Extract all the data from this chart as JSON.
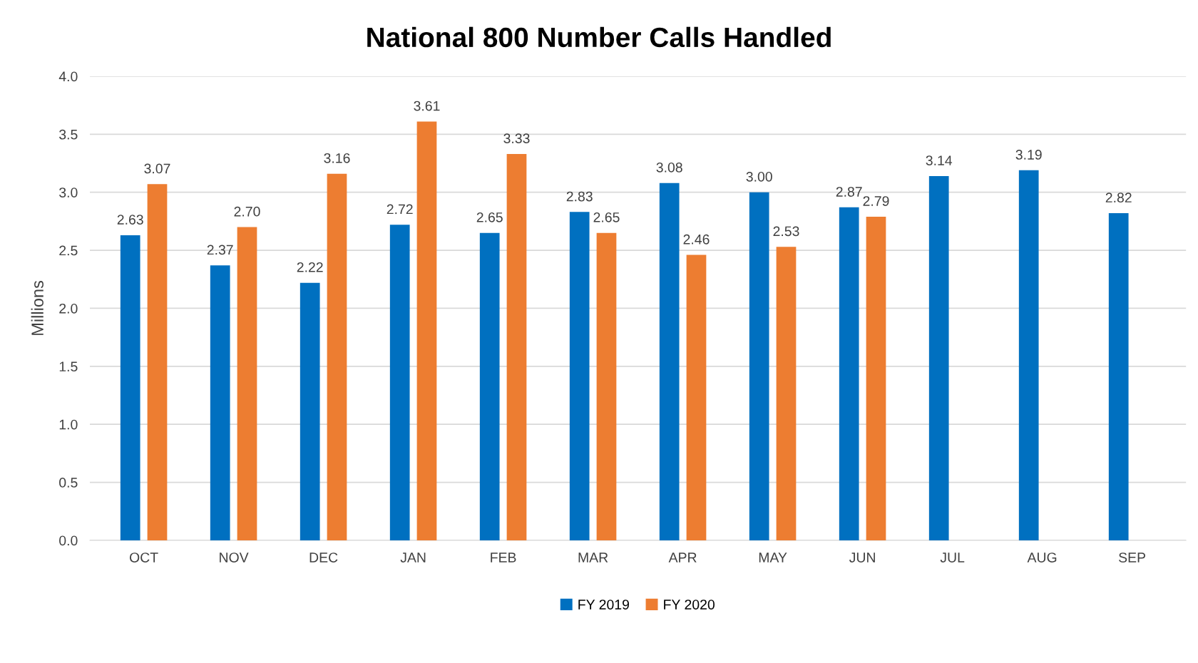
{
  "chart_data": {
    "type": "bar",
    "title": "National 800 Number Calls Handled",
    "ylabel": "Millions",
    "categories": [
      "OCT",
      "NOV",
      "DEC",
      "JAN",
      "FEB",
      "MAR",
      "APR",
      "MAY",
      "JUN",
      "JUL",
      "AUG",
      "SEP"
    ],
    "series": [
      {
        "name": "FY 2019",
        "color": "#0070c0",
        "values": [
          2.63,
          2.37,
          2.22,
          2.72,
          2.65,
          2.83,
          3.08,
          3.0,
          2.87,
          3.14,
          3.19,
          2.82
        ],
        "value_labels": [
          "2.63",
          "2.37",
          "2.22",
          "2.72",
          "2.65",
          "2.83",
          "3.08",
          "3.00",
          "2.87",
          "3.14",
          "3.19",
          "2.82"
        ]
      },
      {
        "name": "FY 2020",
        "color": "#ed7d31",
        "values": [
          3.07,
          2.7,
          3.16,
          3.61,
          3.33,
          2.65,
          2.46,
          2.53,
          2.79,
          null,
          null,
          null
        ],
        "value_labels": [
          "3.07",
          "2.70",
          "3.16",
          "3.61",
          "3.33",
          "2.65",
          "2.46",
          "2.53",
          "2.79",
          null,
          null,
          null
        ]
      }
    ],
    "ylim": [
      0,
      4
    ],
    "yticks": [
      {
        "value": 0,
        "label": "0.0"
      },
      {
        "value": 0.5,
        "label": "0.5"
      },
      {
        "value": 1,
        "label": "1.0"
      },
      {
        "value": 1.5,
        "label": "1.5"
      },
      {
        "value": 2,
        "label": "2.0"
      },
      {
        "value": 2.5,
        "label": "2.5"
      },
      {
        "value": 3,
        "label": "3.0"
      },
      {
        "value": 3.5,
        "label": "3.5"
      },
      {
        "value": 4,
        "label": "4.0"
      }
    ],
    "grid": "y",
    "legend": "bottom"
  }
}
